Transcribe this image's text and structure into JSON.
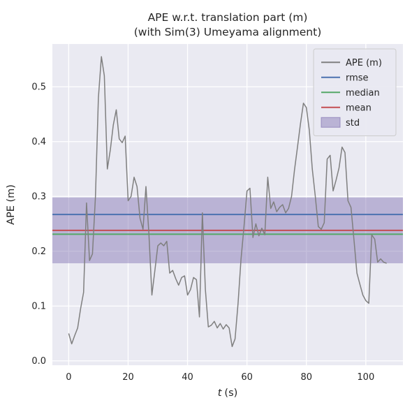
{
  "chart_data": {
    "type": "line",
    "title": "APE w.r.t. translation part (m)",
    "subtitle": "(with Sim(3) Umeyama alignment)",
    "xlabel_var": "t",
    "xlabel_unit": "(s)",
    "ylabel": "APE (m)",
    "xlim": [
      -5.5,
      112.5
    ],
    "ylim": [
      -0.008,
      0.578
    ],
    "grid": true,
    "legend_position": "upper right",
    "xticks": {
      "values": [
        0,
        20,
        40,
        60,
        80,
        100
      ],
      "labels": [
        "0",
        "20",
        "40",
        "60",
        "80",
        "100"
      ]
    },
    "yticks": {
      "values": [
        0.0,
        0.1,
        0.2,
        0.3,
        0.4,
        0.5
      ],
      "labels": [
        "0.0",
        "0.1",
        "0.2",
        "0.3",
        "0.4",
        "0.5"
      ]
    },
    "colors": {
      "axes_background": "#eaeaf2",
      "grid": "#ffffff",
      "legend_background": "#e9e9f1",
      "legend_border": "#cccccc",
      "text": "#262626"
    },
    "stat_lines": [
      {
        "name": "rmse",
        "value": 0.267,
        "color": "#4c72b0"
      },
      {
        "name": "median",
        "value": 0.231,
        "color": "#55a868"
      },
      {
        "name": "mean",
        "value": 0.238,
        "color": "#c44e52"
      }
    ],
    "std_band": {
      "lower": 0.178,
      "upper": 0.298,
      "color": "#8172b2"
    },
    "series": [
      {
        "name": "APE (m)",
        "color": "#7f7f7f",
        "x": [
          0,
          1,
          2,
          3,
          4,
          5,
          6,
          7,
          8,
          9,
          10,
          11,
          12,
          13,
          14,
          15,
          16,
          17,
          18,
          19,
          20,
          21,
          22,
          23,
          24,
          25,
          26,
          27,
          28,
          29,
          30,
          31,
          32,
          33,
          34,
          35,
          36,
          37,
          38,
          39,
          40,
          41,
          42,
          43,
          44,
          45,
          46,
          47,
          48,
          49,
          50,
          51,
          52,
          53,
          54,
          55,
          56,
          57,
          58,
          59,
          60,
          61,
          62,
          63,
          64,
          65,
          66,
          67,
          68,
          69,
          70,
          71,
          72,
          73,
          74,
          75,
          76,
          77,
          78,
          79,
          80,
          81,
          82,
          83,
          84,
          85,
          86,
          87,
          88,
          89,
          90,
          91,
          92,
          93,
          94,
          95,
          96,
          97,
          98,
          99,
          100,
          101,
          102,
          103,
          104,
          105,
          106,
          107
        ],
        "y": [
          0.05,
          0.031,
          0.046,
          0.06,
          0.095,
          0.125,
          0.288,
          0.183,
          0.195,
          0.3,
          0.48,
          0.555,
          0.52,
          0.35,
          0.385,
          0.43,
          0.458,
          0.405,
          0.398,
          0.41,
          0.292,
          0.3,
          0.335,
          0.318,
          0.26,
          0.24,
          0.318,
          0.23,
          0.12,
          0.165,
          0.21,
          0.215,
          0.21,
          0.218,
          0.16,
          0.165,
          0.15,
          0.138,
          0.152,
          0.155,
          0.12,
          0.13,
          0.152,
          0.148,
          0.08,
          0.27,
          0.13,
          0.062,
          0.065,
          0.072,
          0.06,
          0.068,
          0.058,
          0.066,
          0.06,
          0.026,
          0.04,
          0.105,
          0.185,
          0.245,
          0.31,
          0.315,
          0.225,
          0.25,
          0.228,
          0.242,
          0.23,
          0.335,
          0.278,
          0.29,
          0.272,
          0.28,
          0.285,
          0.27,
          0.278,
          0.3,
          0.348,
          0.39,
          0.432,
          0.47,
          0.462,
          0.42,
          0.35,
          0.3,
          0.245,
          0.24,
          0.252,
          0.368,
          0.375,
          0.31,
          0.33,
          0.352,
          0.39,
          0.38,
          0.292,
          0.28,
          0.222,
          0.16,
          0.14,
          0.12,
          0.11,
          0.105,
          0.23,
          0.222,
          0.18,
          0.186,
          0.18,
          0.178
        ]
      }
    ],
    "legend": [
      {
        "label": "APE (m)",
        "type": "line",
        "color": "#7f7f7f"
      },
      {
        "label": "rmse",
        "type": "line",
        "color": "#4c72b0"
      },
      {
        "label": "median",
        "type": "line",
        "color": "#55a868"
      },
      {
        "label": "mean",
        "type": "line",
        "color": "#c44e52"
      },
      {
        "label": "std",
        "type": "patch",
        "color": "#8172b2"
      }
    ]
  }
}
